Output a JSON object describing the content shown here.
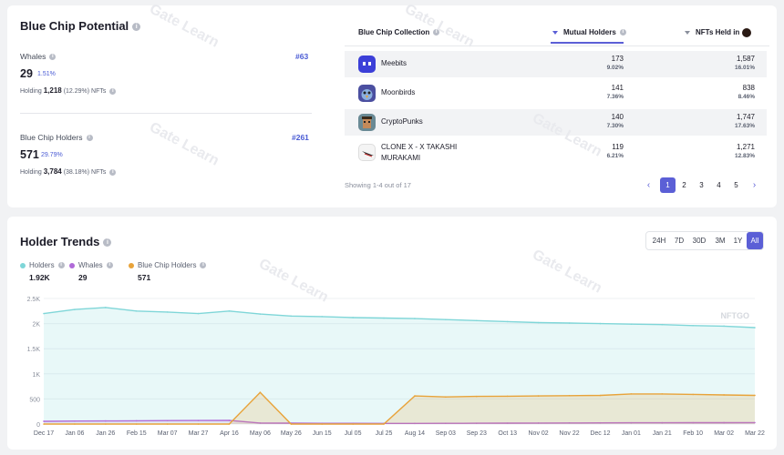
{
  "blue_chip_potential": {
    "title": "Blue Chip Potential",
    "whales": {
      "label": "Whales",
      "value": "29",
      "pct": "1.51%",
      "rank": "#63",
      "holding_prefix": "Holding",
      "holding_count": "1,218",
      "holding_suffix": "(12.29%) NFTs"
    },
    "holders": {
      "label": "Blue Chip Holders",
      "value": "571",
      "pct": "29.79%",
      "rank": "#261",
      "holding_prefix": "Holding",
      "holding_count": "3,784",
      "holding_suffix": "(38.18%) NFTs"
    }
  },
  "collection_table": {
    "headers": {
      "collection": "Blue Chip Collection",
      "mutual": "Mutual Holders",
      "held": "NFTs Held in"
    },
    "rows": [
      {
        "name": "Meebits",
        "mutual": "173",
        "mutual_pct": "9.02%",
        "held": "1,587",
        "held_pct": "16.01%",
        "icon": "meebits-icon",
        "color": "#3c3fd8"
      },
      {
        "name": "Moonbirds",
        "mutual": "141",
        "mutual_pct": "7.36%",
        "held": "838",
        "held_pct": "8.46%",
        "icon": "moonbirds-icon",
        "color": "#4b4fa0"
      },
      {
        "name": "CryptoPunks",
        "mutual": "140",
        "mutual_pct": "7.30%",
        "held": "1,747",
        "held_pct": "17.63%",
        "icon": "cryptopunks-icon",
        "color": "#6a8a95"
      },
      {
        "name_line1": "CLONE X - X TAKASHI",
        "name_line2": "MURAKAMI",
        "mutual": "119",
        "mutual_pct": "6.21%",
        "held": "1,271",
        "held_pct": "12.83%",
        "icon": "clonex-icon",
        "color": "#f4f4f4"
      }
    ],
    "showing": "Showing 1-4 out of 17",
    "pages": [
      "1",
      "2",
      "3",
      "4",
      "5"
    ],
    "active_page": "1"
  },
  "holder_trends": {
    "title": "Holder Trends",
    "ranges": [
      "24H",
      "7D",
      "30D",
      "3M",
      "1Y",
      "All"
    ],
    "active_range": "All",
    "legend": [
      {
        "label": "Holders",
        "value": "1.92K",
        "color": "#7fd6d8"
      },
      {
        "label": "Whales",
        "value": "29",
        "color": "#b06ad8"
      },
      {
        "label": "Blue Chip Holders",
        "value": "571",
        "color": "#e8a33a"
      }
    ],
    "watermark": "NFTGO",
    "chart_data": {
      "type": "area",
      "x": [
        "Dec 17",
        "Jan 06",
        "Jan 26",
        "Feb 15",
        "Mar 07",
        "Mar 27",
        "Apr 16",
        "May 06",
        "May 26",
        "Jun 15",
        "Jul 05",
        "Jul 25",
        "Aug 14",
        "Sep 03",
        "Sep 23",
        "Oct 13",
        "Nov 02",
        "Nov 22",
        "Dec 12",
        "Jan 01",
        "Jan 21",
        "Feb 10",
        "Mar 02",
        "Mar 22"
      ],
      "y_ticks": [
        "0",
        "500",
        "1K",
        "1.5K",
        "2K",
        "2.5K"
      ],
      "ylim": [
        0,
        2500
      ],
      "series": [
        {
          "name": "Holders",
          "color": "#7fd6d8",
          "values": [
            2200,
            2280,
            2320,
            2250,
            2230,
            2200,
            2250,
            2190,
            2150,
            2140,
            2120,
            2110,
            2100,
            2080,
            2060,
            2040,
            2020,
            2010,
            2000,
            1990,
            1980,
            1960,
            1950,
            1920
          ]
        },
        {
          "name": "Whales",
          "color": "#b06ad8",
          "values": [
            55,
            60,
            62,
            65,
            68,
            70,
            72,
            20,
            18,
            15,
            14,
            12,
            12,
            14,
            16,
            18,
            20,
            22,
            24,
            25,
            26,
            27,
            28,
            29
          ]
        },
        {
          "name": "Blue Chip Holders",
          "color": "#e8a33a",
          "values": [
            0,
            0,
            0,
            0,
            0,
            0,
            0,
            630,
            0,
            0,
            0,
            0,
            560,
            540,
            550,
            555,
            560,
            565,
            570,
            600,
            600,
            590,
            580,
            571
          ]
        }
      ]
    }
  },
  "watermarks": [
    "Gate Learn"
  ]
}
